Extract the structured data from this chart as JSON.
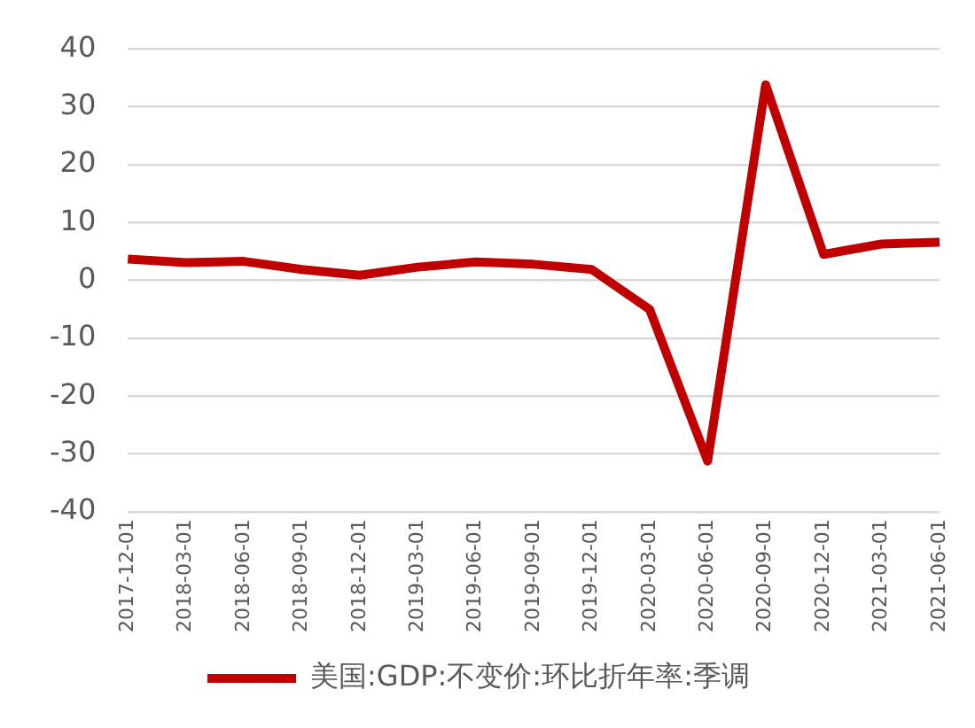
{
  "chart_data": {
    "type": "line",
    "categories": [
      "2017-12-01",
      "2018-03-01",
      "2018-06-01",
      "2018-09-01",
      "2018-12-01",
      "2019-03-01",
      "2019-06-01",
      "2019-09-01",
      "2019-12-01",
      "2020-03-01",
      "2020-06-01",
      "2020-09-01",
      "2020-12-01",
      "2021-03-01",
      "2021-06-01"
    ],
    "series": [
      {
        "name": "美国:GDP:不变价:环比折年率:季调",
        "color": "#c00000",
        "values": [
          3.7,
          3.1,
          3.3,
          1.9,
          0.9,
          2.3,
          3.2,
          2.8,
          1.9,
          -5,
          -31.2,
          33.8,
          4.5,
          6.3,
          6.6
        ]
      }
    ],
    "ylim": [
      -40,
      40
    ],
    "yticks": [
      -40,
      -30,
      -20,
      -10,
      0,
      10,
      20,
      30,
      40
    ],
    "grid": "y",
    "legend": "bottom",
    "marker": "none",
    "line_style": "solid"
  }
}
